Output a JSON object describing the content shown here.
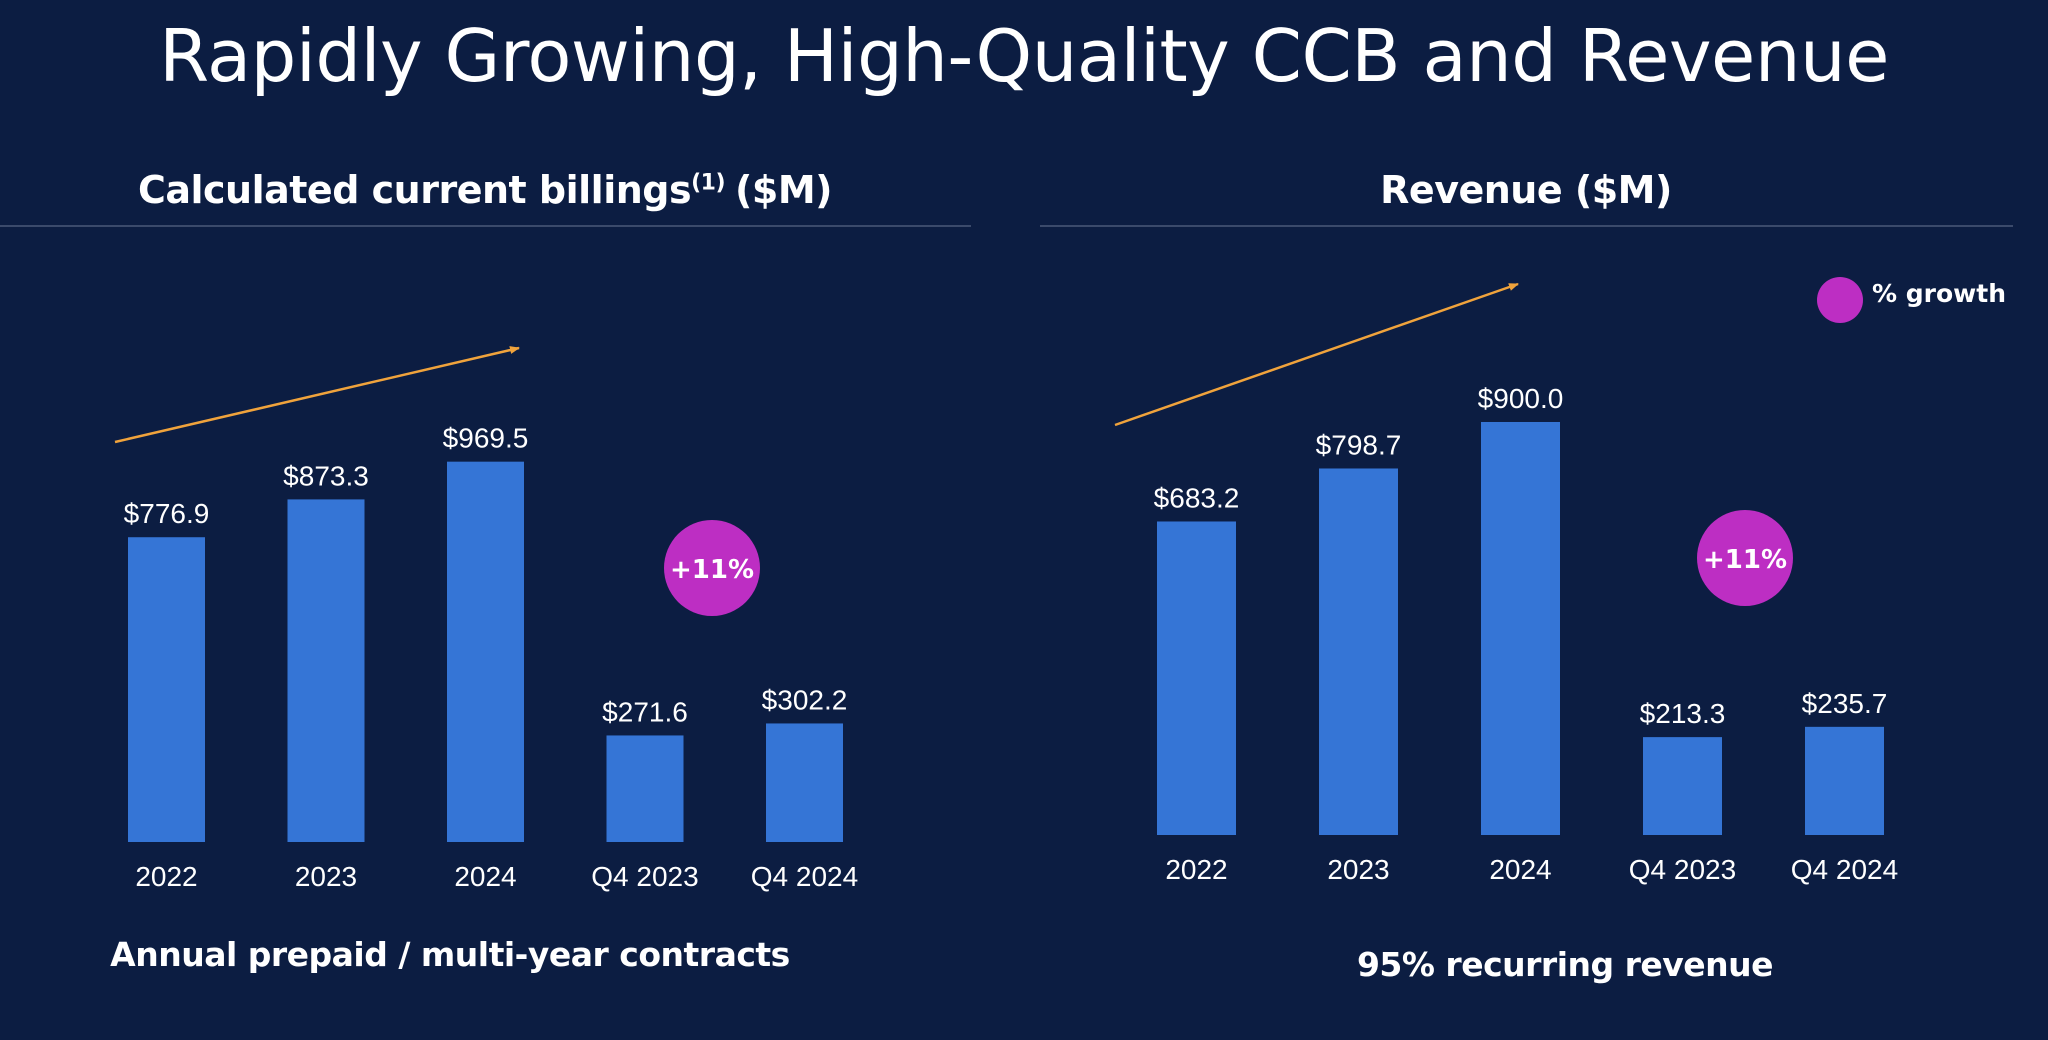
{
  "slide_title": "Rapidly Growing, High-Quality CCB and Revenue",
  "colors": {
    "background": "#0c1d42",
    "bar": "#3575d6",
    "growth_bubble": "#bd2ec3",
    "trend_arrow": "#f0a33c",
    "divider": "#3b4a6b"
  },
  "left_panel": {
    "title": "Calculated current billings",
    "title_sup": "(1)",
    "title_suffix": "($M)",
    "growth_label": "+11%",
    "footnote": "Annual prepaid / multi-year contracts"
  },
  "right_panel": {
    "title": "Revenue ($M)",
    "growth_label": "+11%",
    "legend_label": "% growth",
    "footnote": "95% recurring revenue"
  },
  "chart_data": [
    {
      "type": "bar",
      "title": "Calculated current billings(1) ($M)",
      "categories": [
        "2022",
        "2023",
        "2024",
        "Q4 2023",
        "Q4 2024"
      ],
      "values": [
        776.9,
        873.3,
        969.5,
        271.6,
        302.2
      ],
      "value_labels": [
        "$776.9",
        "$873.3",
        "$969.5",
        "$271.6",
        "$302.2"
      ],
      "annotations": {
        "trend": "upward arrow over annual bars",
        "growth": "+11%"
      }
    },
    {
      "type": "bar",
      "title": "Revenue ($M)",
      "categories": [
        "2022",
        "2023",
        "2024",
        "Q4 2023",
        "Q4 2024"
      ],
      "values": [
        683.2,
        798.7,
        900.0,
        213.3,
        235.7
      ],
      "value_labels": [
        "$683.2",
        "$798.7",
        "$900.0",
        "$213.3",
        "$235.7"
      ],
      "annotations": {
        "trend": "upward arrow over annual bars",
        "growth": "+11%"
      },
      "legend": {
        "label": "% growth",
        "position": "top-right"
      }
    }
  ]
}
